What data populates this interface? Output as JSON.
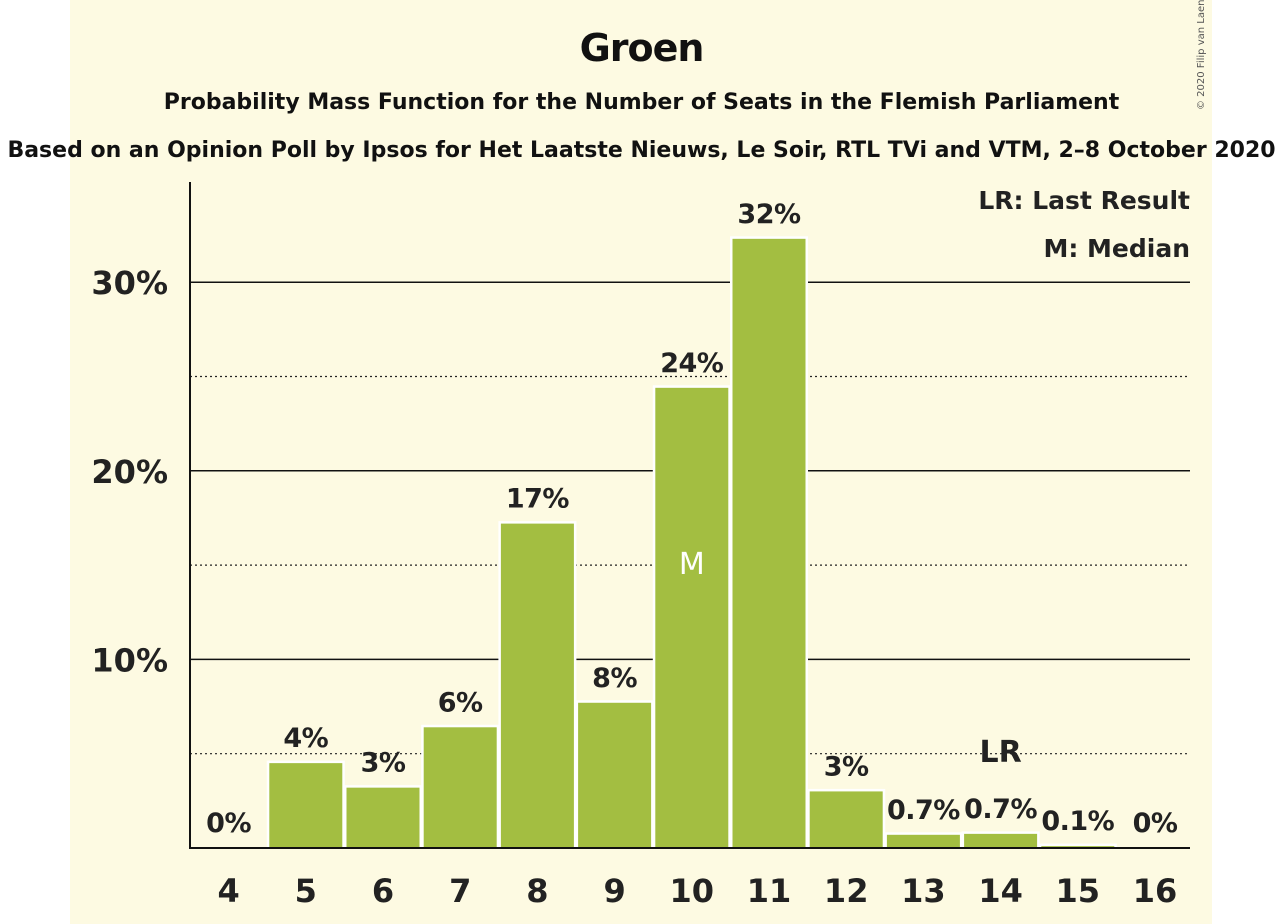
{
  "chart_data": {
    "type": "bar",
    "title": "Groen",
    "subtitle": "Probability Mass Function for the Number of Seats in the Flemish Parliament",
    "source": "Based on an Opinion Poll by Ipsos for Het Laatste Nieuws, Le Soir, RTL TVi and VTM, 2–8 October 2020",
    "copyright": "© 2020 Filip van Laenen",
    "categories": [
      "4",
      "5",
      "6",
      "7",
      "8",
      "9",
      "10",
      "11",
      "12",
      "13",
      "14",
      "15",
      "16"
    ],
    "values": [
      0,
      4.5,
      3.2,
      6.4,
      17.2,
      7.7,
      24.4,
      32.3,
      3.0,
      0.7,
      0.75,
      0.1,
      0
    ],
    "value_labels": [
      "0%",
      "4%",
      "3%",
      "6%",
      "17%",
      "8%",
      "24%",
      "32%",
      "3%",
      "0.7%",
      "0.7%",
      "0.1%",
      "0%"
    ],
    "ylim": [
      0,
      35
    ],
    "y_ticks": [
      10,
      20,
      30
    ],
    "y_tick_labels": [
      "10%",
      "20%",
      "30%"
    ],
    "minor_gridlines": [
      5,
      15,
      25
    ],
    "median_category": "10",
    "median_marker": "M",
    "last_result_category": "14",
    "last_result_marker": "LR",
    "legend": [
      "LR: Last Result",
      "M: Median"
    ],
    "legend_position": "top-right",
    "bar_color": "#a3be41",
    "grid": true
  }
}
